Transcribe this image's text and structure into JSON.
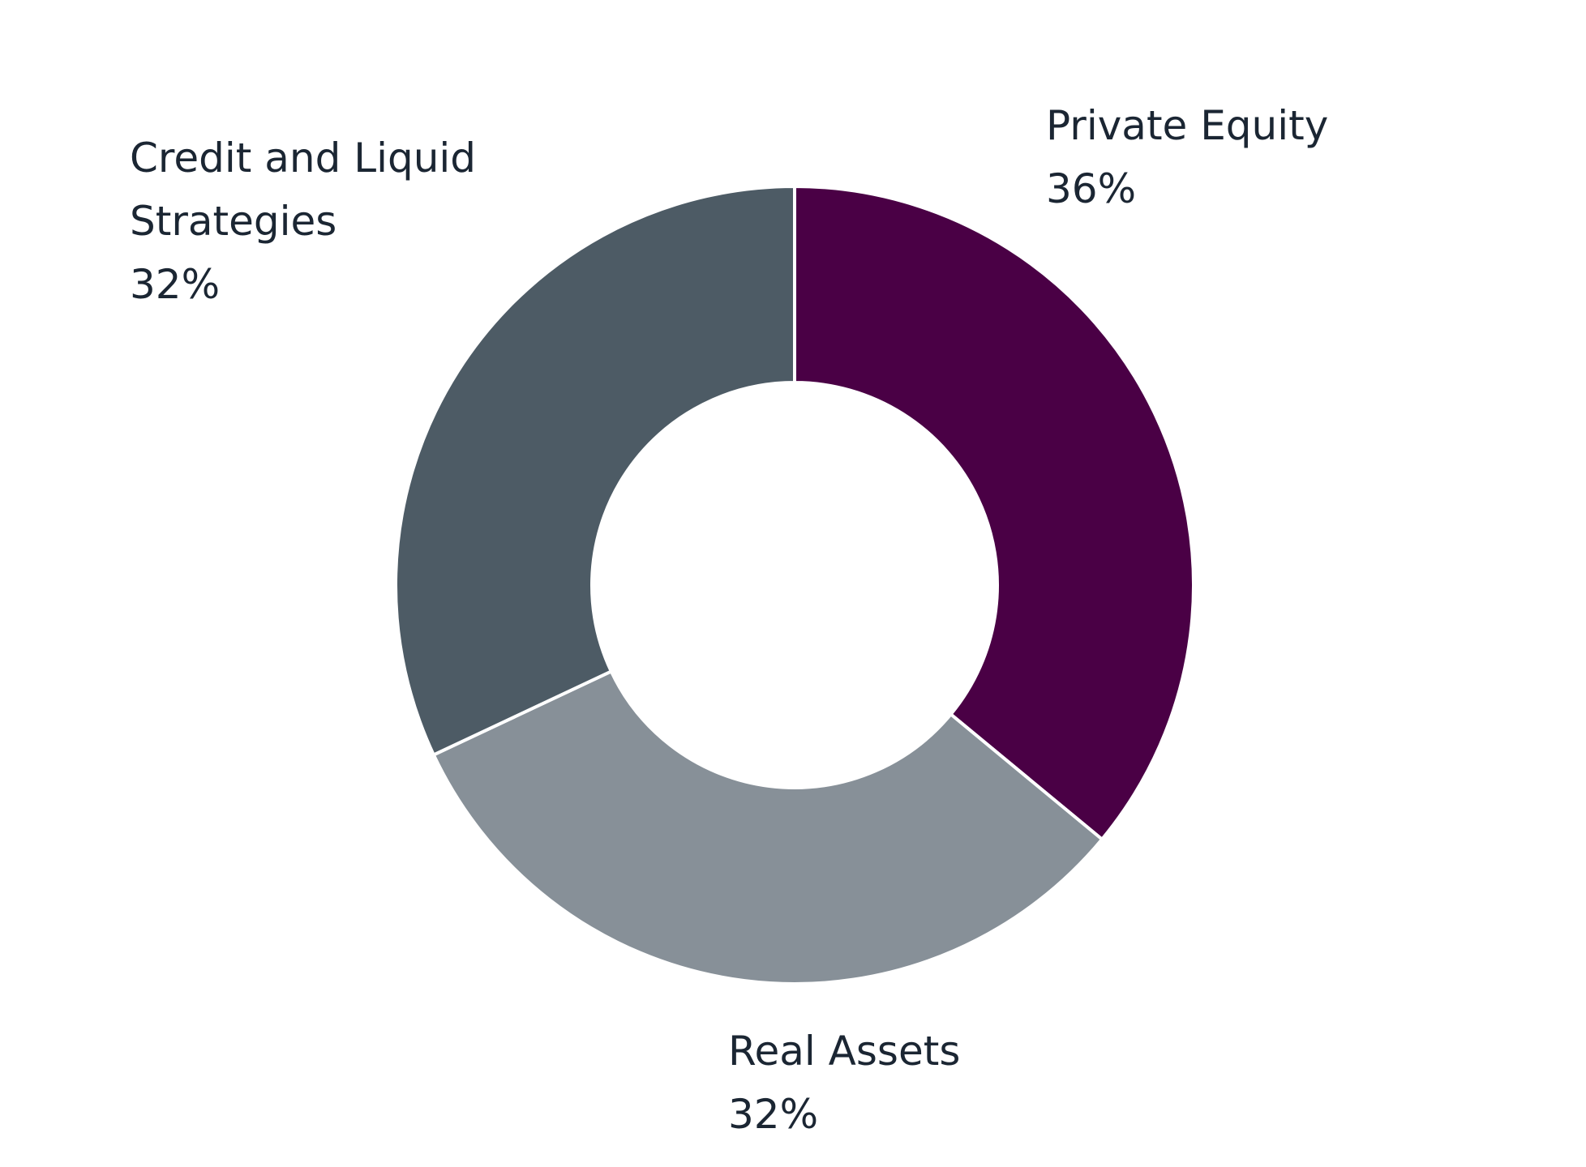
{
  "chart_data": {
    "type": "pie",
    "donut": true,
    "title": "",
    "slices": [
      {
        "label": "Private Equity",
        "value": 36,
        "value_label": "36%",
        "color": "#4a0045"
      },
      {
        "label": "Real Assets",
        "value": 32,
        "value_label": "32%",
        "color": "#879098"
      },
      {
        "label": "Credit and Liquid Strategies",
        "value": 32,
        "value_label": "32%",
        "color": "#4d5b65"
      }
    ],
    "start_angle_deg": 0,
    "direction": "clockwise",
    "legend": "none",
    "separator_color": "#ffffff"
  },
  "labels": {
    "private_equity": {
      "name": "Private Equity",
      "pct": "36%"
    },
    "credit": {
      "name_line1": "Credit and Liquid",
      "name_line2": "Strategies",
      "pct": "32%"
    },
    "real_assets": {
      "name": "Real Assets",
      "pct": "32%"
    }
  }
}
